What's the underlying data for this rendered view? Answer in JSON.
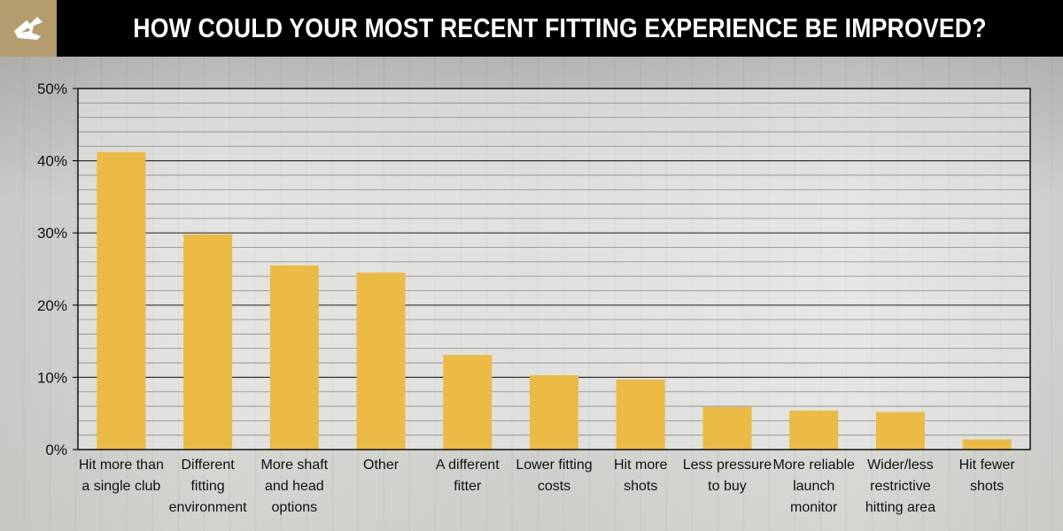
{
  "header": {
    "title": "HOW COULD YOUR MOST RECENT FITTING EXPERIENCE BE IMPROVED?",
    "logo_icon": "club-logo-icon",
    "background": "#000000",
    "logo_background": "#b59c6e"
  },
  "chart_data": {
    "type": "bar",
    "title": "HOW COULD YOUR MOST RECENT FITTING EXPERIENCE BE IMPROVED?",
    "xlabel": "",
    "ylabel": "",
    "ylim": [
      0,
      50
    ],
    "y_ticks": [
      "0%",
      "10%",
      "20%",
      "30%",
      "40%",
      "50%"
    ],
    "grid": true,
    "bar_color": "#ebbb45",
    "categories": [
      [
        "Hit more than",
        "a single club"
      ],
      [
        "Different",
        "fitting",
        "environment"
      ],
      [
        "More shaft",
        "and head",
        "options"
      ],
      [
        "Other"
      ],
      [
        "A different",
        "fitter"
      ],
      [
        "Lower fitting",
        "costs"
      ],
      [
        "Hit more",
        "shots"
      ],
      [
        "Less pressure",
        "to buy"
      ],
      [
        "More reliable",
        "launch",
        "monitor"
      ],
      [
        "Wider/less",
        "restrictive",
        "hitting area"
      ],
      [
        "Hit fewer",
        "shots"
      ]
    ],
    "values": [
      41.2,
      29.8,
      25.5,
      24.5,
      13.1,
      10.3,
      9.7,
      5.9,
      5.4,
      5.2,
      1.4
    ]
  }
}
